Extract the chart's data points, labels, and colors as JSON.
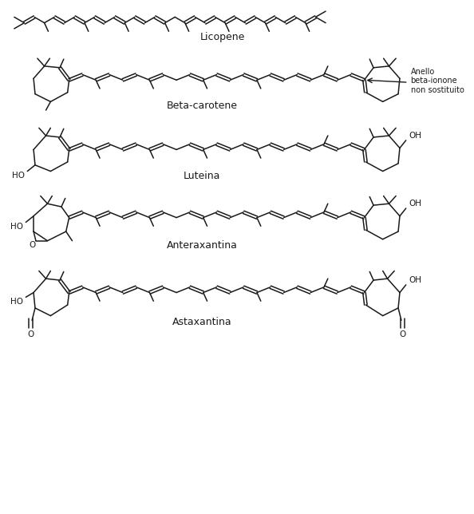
{
  "bg_color": "#ffffff",
  "line_color": "#1a1a1a",
  "labels": {
    "licopene": "Licopene",
    "beta_carotene": "Beta-carotene",
    "luteina": "Luteina",
    "anteraxantina": "Anteraxantina",
    "astaxantina": "Astaxantina",
    "annotation": "Anello\nbeta-ionone\nnon sostituito"
  },
  "font_size_label": 9,
  "figsize": [
    5.94,
    6.44
  ],
  "dpi": 100
}
